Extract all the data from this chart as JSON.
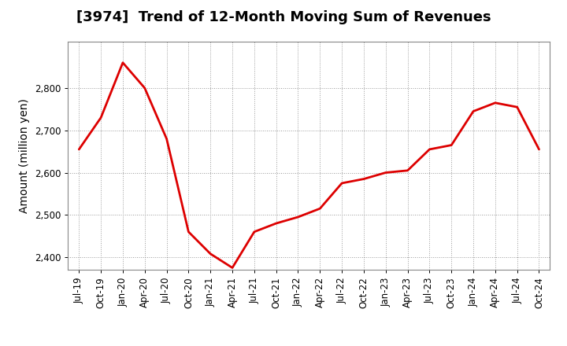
{
  "title": "[3974]  Trend of 12-Month Moving Sum of Revenues",
  "ylabel": "Amount (million yen)",
  "background_color": "#ffffff",
  "line_color": "#dd0000",
  "line_width": 2.0,
  "grid_color": "#999999",
  "ylim": [
    2370,
    2910
  ],
  "yticks": [
    2400,
    2500,
    2600,
    2700,
    2800
  ],
  "values": [
    2655,
    2730,
    2860,
    2800,
    2680,
    2460,
    2408,
    2375,
    2460,
    2480,
    2495,
    2515,
    2575,
    2585,
    2600,
    2605,
    2655,
    2665,
    2745,
    2765,
    2755,
    2655
  ],
  "tick_labels": [
    "Jul-19",
    "Oct-19",
    "Jan-20",
    "Apr-20",
    "Jul-20",
    "Oct-20",
    "Jan-21",
    "Apr-21",
    "Jul-21",
    "Oct-21",
    "Jan-22",
    "Apr-22",
    "Jul-22",
    "Oct-22",
    "Jan-23",
    "Apr-23",
    "Jul-23",
    "Oct-23",
    "Jan-24",
    "Apr-24",
    "Jul-24",
    "Oct-24"
  ],
  "title_fontsize": 13,
  "axis_label_fontsize": 10,
  "tick_fontsize": 8.5
}
